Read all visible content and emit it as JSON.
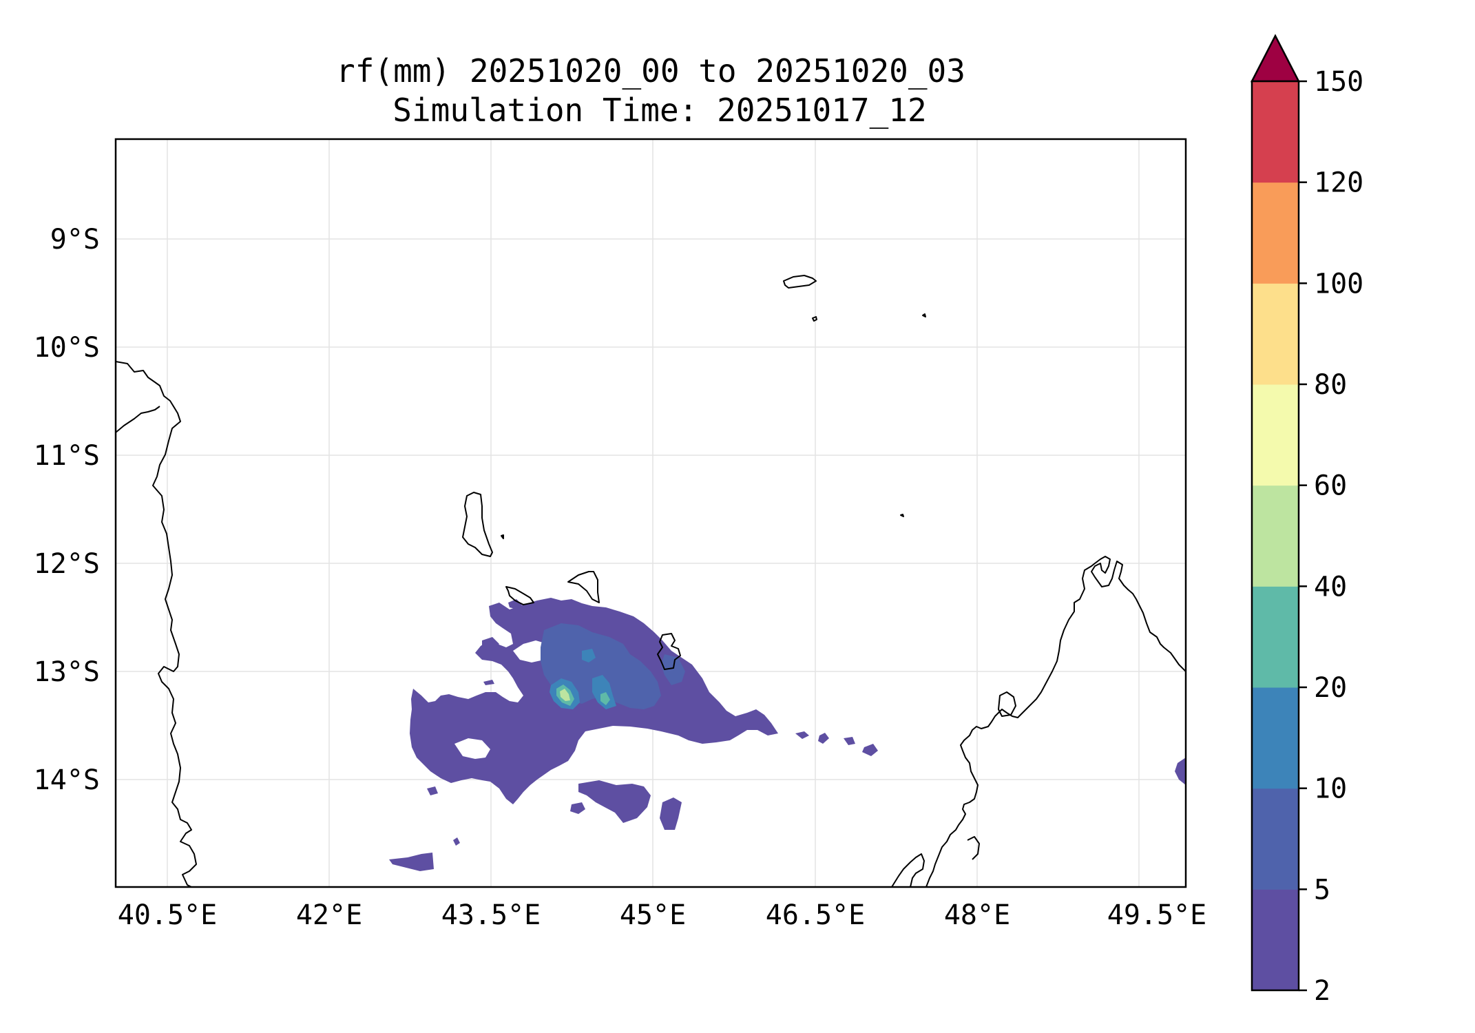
{
  "title": {
    "line1": "rf(mm) 20251020_00 to 20251020_03",
    "line2": "Simulation Time: 20251017_12"
  },
  "map": {
    "lon_ticks": [
      "40.5°E",
      "42°E",
      "43.5°E",
      "45°E",
      "46.5°E",
      "48°E",
      "49.5°E"
    ],
    "lat_ticks": [
      "9°S",
      "10°S",
      "11°S",
      "12°S",
      "13°S",
      "14°S"
    ],
    "field": "rf(mm)"
  },
  "colorbar": {
    "ticks": [
      "2",
      "5",
      "10",
      "20",
      "40",
      "60",
      "80",
      "100",
      "120",
      "150"
    ],
    "colors": [
      "#5e4fa2",
      "#4f63ac",
      "#3d84b9",
      "#5fbaa8",
      "#bde4a0",
      "#f4faad",
      "#fddf8b",
      "#f99c59",
      "#d5404f"
    ],
    "extend_color": "#9e0142",
    "extend": "max"
  }
}
